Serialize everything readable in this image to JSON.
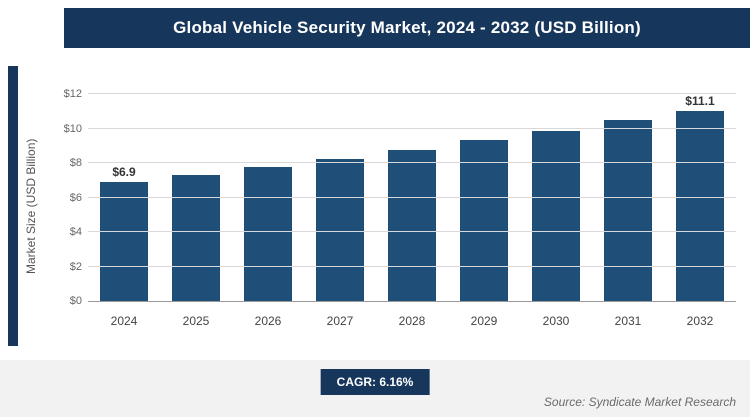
{
  "colors": {
    "navy": "#16365c",
    "bar": "#1f4e79",
    "grid": "#d9d9d9"
  },
  "footer": {
    "cagr_label": "CAGR: 6.16%",
    "source": "Source: Syndicate Market Research"
  },
  "chart_data": {
    "type": "bar",
    "title": "Global Vehicle Security Market, 2024 - 2032 (USD Billion)",
    "ylabel": "Market Size (USD Billion)",
    "xlabel": "",
    "ymax": 12,
    "grid": true,
    "yticks": [
      {
        "label": "$0",
        "value": 0
      },
      {
        "label": "$2",
        "value": 2
      },
      {
        "label": "$4",
        "value": 4
      },
      {
        "label": "$6",
        "value": 6
      },
      {
        "label": "$8",
        "value": 8
      },
      {
        "label": "$10",
        "value": 10
      },
      {
        "label": "$12",
        "value": 12
      }
    ],
    "bars": [
      {
        "year": "2024",
        "value": 6.9,
        "label": "$6.9"
      },
      {
        "year": "2025",
        "value": 7.32,
        "label": ""
      },
      {
        "year": "2026",
        "value": 7.78,
        "label": ""
      },
      {
        "year": "2027",
        "value": 8.26,
        "label": ""
      },
      {
        "year": "2028",
        "value": 8.77,
        "label": ""
      },
      {
        "year": "2029",
        "value": 9.31,
        "label": ""
      },
      {
        "year": "2030",
        "value": 9.88,
        "label": ""
      },
      {
        "year": "2031",
        "value": 10.49,
        "label": ""
      },
      {
        "year": "2032",
        "value": 11.1,
        "label": "$11.1"
      }
    ]
  }
}
